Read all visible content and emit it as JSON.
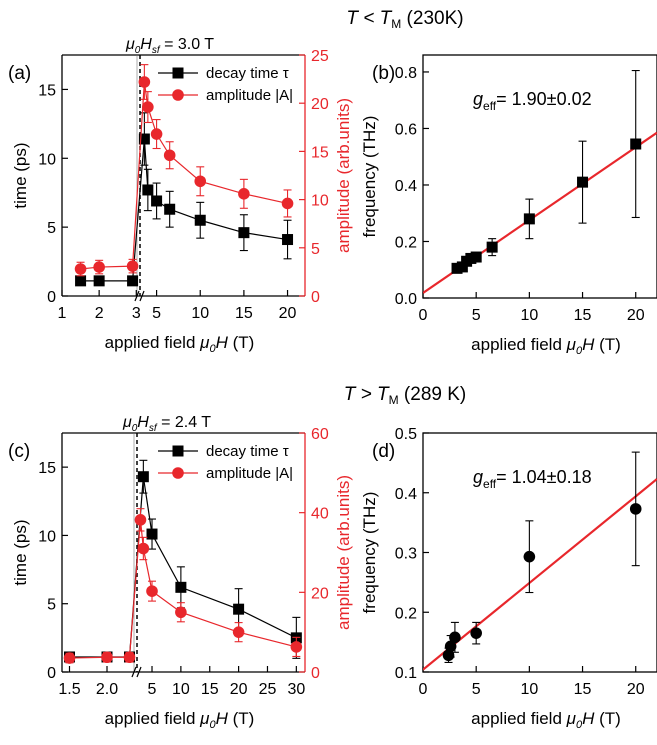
{
  "figure": {
    "header_top": {
      "pre": "T < T",
      "sub": "M",
      "post": " (230K)"
    },
    "header_bottom": {
      "pre": "T > T",
      "sub": "M",
      "post": " (289 K)"
    }
  },
  "colors": {
    "black": "#000000",
    "red": "#e8272c",
    "axis_red": "#e8272c"
  },
  "chart_data": [
    {
      "id": "a",
      "panel_label": "(a)",
      "type": "line",
      "xlabel": "applied field μ0H (T)",
      "ylabel_left": "time (ps)",
      "ylabel_right": "amplitude (arb.units)",
      "spin_flop_label": "μ0Hsf = 3.0 T",
      "broken_x_axis": true,
      "left_segment": {
        "xlim": [
          1,
          3.1
        ],
        "ticks": [
          1,
          2,
          3
        ],
        "tick_labels": [
          "1",
          "2",
          "3"
        ]
      },
      "right_segment": {
        "xlim": [
          3.1,
          22
        ],
        "ticks": [
          5,
          10,
          15,
          20
        ],
        "tick_labels": [
          "5",
          "10",
          "15",
          "20"
        ]
      },
      "ylim_left": [
        0,
        17.5
      ],
      "yticks_left": [
        0,
        5,
        10,
        15
      ],
      "ylim_right": [
        0,
        25
      ],
      "yticks_right": [
        0,
        5,
        10,
        15,
        20,
        25
      ],
      "legend": {
        "position": "top-right",
        "entries": [
          "decay time τ",
          "amplitude |A|"
        ]
      },
      "series": [
        {
          "name": "decay time τ",
          "axis": "left",
          "marker": "square",
          "color": "#000000",
          "x": [
            1.5,
            2,
            2.9,
            3.6,
            4,
            5,
            6.5,
            10,
            15,
            20
          ],
          "y": [
            1.1,
            1.1,
            1.1,
            11.4,
            7.7,
            6.9,
            6.3,
            5.5,
            4.6,
            4.1
          ],
          "err": [
            0,
            0,
            0,
            1.9,
            1.5,
            1.3,
            1.3,
            1.3,
            1.3,
            1.4
          ]
        },
        {
          "name": "amplitude |A|",
          "axis": "right",
          "marker": "circle",
          "color": "#e8272c",
          "x": [
            1.5,
            2,
            2.9,
            3.6,
            4,
            5,
            6.5,
            10,
            15,
            20
          ],
          "y": [
            2.8,
            3.0,
            3.1,
            22.2,
            19.6,
            16.8,
            14.6,
            11.9,
            10.6,
            9.6
          ],
          "err": [
            0.7,
            0.7,
            0.7,
            1.8,
            1.6,
            1.5,
            1.4,
            1.5,
            1.5,
            1.4
          ]
        }
      ]
    },
    {
      "id": "b",
      "panel_label": "(b)",
      "type": "scatter",
      "xlabel": "applied field μ0H (T)",
      "ylabel": "frequency (THz)",
      "xlim": [
        0,
        22
      ],
      "xticks": [
        0,
        5,
        10,
        15,
        20
      ],
      "ylim": [
        0,
        0.86
      ],
      "yticks": [
        0.0,
        0.2,
        0.4,
        0.6,
        0.8
      ],
      "ytick_labels": [
        "0.0",
        "0.2",
        "0.4",
        "0.6",
        "0.8"
      ],
      "annotation": {
        "pre": "g",
        "sub": "eff",
        "post": "= 1.90±0.02"
      },
      "fit_line": {
        "color": "#e8272c",
        "x": [
          0,
          22
        ],
        "y": [
          0.018,
          0.585
        ]
      },
      "series": [
        {
          "marker": "square",
          "color": "#000000",
          "x": [
            3.2,
            3.7,
            4.1,
            4.5,
            5.0,
            6.5,
            10,
            15,
            20
          ],
          "y": [
            0.105,
            0.11,
            0.13,
            0.14,
            0.145,
            0.18,
            0.28,
            0.41,
            0.545
          ],
          "err": [
            0.01,
            0.01,
            0.01,
            0.015,
            0.015,
            0.03,
            0.07,
            0.145,
            0.26
          ]
        }
      ]
    },
    {
      "id": "c",
      "panel_label": "(c)",
      "type": "line",
      "xlabel": "applied field μ0H (T)",
      "ylabel_left": "time (ps)",
      "ylabel_right": "amplitude (arb.units)",
      "spin_flop_label": "μ0Hsf = 2.4 T",
      "broken_x_axis": true,
      "left_segment": {
        "xlim": [
          1.4,
          2.4
        ],
        "ticks": [
          1.5,
          2.0
        ],
        "tick_labels": [
          "1.5",
          "2.0"
        ]
      },
      "right_segment": {
        "xlim": [
          2.4,
          31.5
        ],
        "ticks": [
          5,
          10,
          15,
          20,
          25,
          30
        ],
        "tick_labels": [
          "5",
          "10",
          "15",
          "20",
          "25",
          "30"
        ]
      },
      "ylim_left": [
        0,
        17.5
      ],
      "yticks_left": [
        0,
        5,
        10,
        15
      ],
      "ylim_right": [
        0,
        60
      ],
      "yticks_right": [
        0,
        20,
        40,
        60
      ],
      "legend": {
        "position": "top-right",
        "entries": [
          "decay time τ",
          "amplitude |A|"
        ]
      },
      "series": [
        {
          "name": "decay time τ",
          "axis": "left",
          "marker": "square",
          "color": "#000000",
          "x": [
            1.5,
            2.0,
            2.3,
            3.5,
            5.0,
            10.0,
            20.0,
            30.0
          ],
          "y": [
            1.1,
            1.1,
            1.1,
            14.3,
            10.1,
            6.2,
            4.6,
            2.5
          ],
          "err": [
            0,
            0,
            0,
            1.2,
            1.1,
            1.5,
            1.5,
            1.5
          ]
        },
        {
          "name": "amplitude |A|",
          "axis": "right",
          "marker": "circle",
          "color": "#e8272c",
          "x": [
            1.5,
            2.0,
            2.3,
            3.0,
            3.5,
            5.0,
            10.0,
            20.0,
            30.0
          ],
          "y": [
            3.5,
            3.7,
            3.7,
            38.2,
            31.0,
            20.3,
            15.0,
            10.0,
            6.3
          ],
          "err": [
            1.2,
            1.2,
            1.2,
            2.8,
            2.8,
            2.5,
            2.4,
            2.4,
            2.4
          ]
        }
      ]
    },
    {
      "id": "d",
      "panel_label": "(d)",
      "type": "scatter",
      "xlabel": "applied field μ0H (T)",
      "ylabel": "frequency (THz)",
      "xlim": [
        0,
        22
      ],
      "xticks": [
        0,
        5,
        10,
        15,
        20
      ],
      "ylim": [
        0.1,
        0.5
      ],
      "yticks": [
        0.1,
        0.2,
        0.3,
        0.4,
        0.5
      ],
      "ytick_labels": [
        "0.1",
        "0.2",
        "0.3",
        "0.4",
        "0.5"
      ],
      "annotation": {
        "pre": "g",
        "sub": "eff",
        "post": "= 1.04±0.18"
      },
      "fit_line": {
        "color": "#e8272c",
        "x": [
          0,
          22
        ],
        "y": [
          0.104,
          0.423
        ]
      },
      "series": [
        {
          "marker": "circle",
          "color": "#000000",
          "x": [
            2.4,
            2.6,
            3.0,
            5.0,
            10.0,
            20.0
          ],
          "y": [
            0.128,
            0.143,
            0.158,
            0.165,
            0.293,
            0.373
          ],
          "err": [
            0.012,
            0.018,
            0.025,
            0.018,
            0.06,
            0.095
          ]
        }
      ]
    }
  ]
}
